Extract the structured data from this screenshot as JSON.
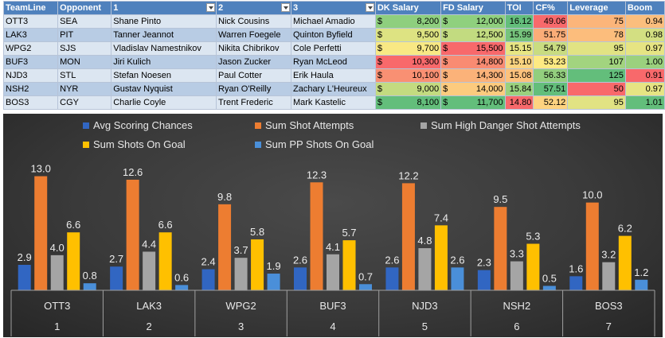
{
  "table": {
    "headers": [
      "TeamLine",
      "Opponent",
      "1",
      "2",
      "3",
      "DK Salary",
      "FD Salary",
      "TOI",
      "CF%",
      "Leverage",
      "Boom"
    ],
    "rows": [
      {
        "teamline": "OTT3",
        "opponent": "SEA",
        "p1": "Shane Pinto",
        "p2": "Nick Cousins",
        "p3": "Michael Amadio",
        "dk": "8,200",
        "fd": "12,000",
        "toi": "16.12",
        "cf": "49.06",
        "leverage": "75",
        "boom": "0.94",
        "colors": {
          "dk": "#8ecf7e",
          "fd": "#8fd07e",
          "toi": "#63be7b",
          "cf": "#f8696b",
          "leverage": "#fcb57a",
          "boom": "#fbbe7d"
        }
      },
      {
        "teamline": "LAK3",
        "opponent": "PIT",
        "p1": "Tanner Jeannot",
        "p2": "Warren Foegele",
        "p3": "Quinton Byfield",
        "dk": "9,500",
        "fd": "12,500",
        "toi": "15.99",
        "cf": "51.75",
        "leverage": "78",
        "boom": "0.98",
        "colors": {
          "dk": "#dde382",
          "fd": "#c2db80",
          "toi": "#76c47c",
          "cf": "#fbad78",
          "leverage": "#fcbd7c",
          "boom": "#d3df82"
        }
      },
      {
        "teamline": "WPG2",
        "opponent": "SJS",
        "p1": "Vladislav Namestnikov",
        "p2": "Nikita Chibrikov",
        "p3": "Cole Perfetti",
        "dk": "9,700",
        "fd": "15,500",
        "toi": "15.15",
        "cf": "54.79",
        "leverage": "95",
        "boom": "0.97",
        "colors": {
          "dk": "#f8e884",
          "fd": "#f8696b",
          "toi": "#e7e583",
          "cf": "#c9dc81",
          "leverage": "#e1e383",
          "boom": "#e6e483"
        }
      },
      {
        "teamline": "BUF3",
        "opponent": "MON",
        "p1": "Jiri Kulich",
        "p2": "Jason Zucker",
        "p3": "Ryan McLeod",
        "dk": "10,300",
        "fd": "14,800",
        "toi": "15.10",
        "cf": "53.23",
        "leverage": "107",
        "boom": "1.00",
        "colors": {
          "dk": "#f8696b",
          "fd": "#f98b72",
          "toi": "#fbd480",
          "cf": "#feea83",
          "leverage": "#a2d47f",
          "boom": "#9bd17e"
        }
      },
      {
        "teamline": "NJD3",
        "opponent": "STL",
        "p1": "Stefan Noesen",
        "p2": "Paul Cotter",
        "p3": "Erik Haula",
        "dk": "10,100",
        "fd": "14,300",
        "toi": "15.08",
        "cf": "56.33",
        "leverage": "125",
        "boom": "0.91",
        "colors": {
          "dk": "#f99073",
          "fd": "#fbb279",
          "toi": "#fcc27c",
          "cf": "#93cf7e",
          "leverage": "#63be7b",
          "boom": "#f8696b"
        }
      },
      {
        "teamline": "NSH2",
        "opponent": "NYR",
        "p1": "Gustav Nyquist",
        "p2": "Ryan O'Reilly",
        "p3": "Zachary L'Heureux",
        "dk": "9,000",
        "fd": "14,000",
        "toi": "15.84",
        "cf": "57.51",
        "leverage": "50",
        "boom": "0.97",
        "colors": {
          "dk": "#c3db80",
          "fd": "#fccb7e",
          "toi": "#9ad17e",
          "cf": "#63be7b",
          "leverage": "#f8696b",
          "boom": "#e6e483"
        }
      },
      {
        "teamline": "BOS3",
        "opponent": "CGY",
        "p1": "Charlie Coyle",
        "p2": "Trent Frederic",
        "p3": "Mark Kastelic",
        "dk": "8,100",
        "fd": "11,700",
        "toi": "14.80",
        "cf": "52.12",
        "leverage": "95",
        "boom": "1.01",
        "colors": {
          "dk": "#63be7b",
          "fd": "#63be7b",
          "toi": "#f8696b",
          "cf": "#fed380",
          "leverage": "#e1e383",
          "boom": "#63be7b"
        }
      }
    ]
  },
  "chart_data": {
    "type": "bar",
    "title": "",
    "xlabel": "",
    "ylabel": "",
    "categories": [
      "OTT3",
      "LAK3",
      "WPG2",
      "BUF3",
      "NJD3",
      "NSH2",
      "BOS3"
    ],
    "category_index": [
      "1",
      "2",
      "3",
      "4",
      "5",
      "6",
      "7"
    ],
    "ylim": [
      0,
      14.5
    ],
    "grid": false,
    "legend_position": "top",
    "series": [
      {
        "name": "Avg Scoring Chances",
        "values": [
          2.9,
          2.7,
          2.4,
          2.6,
          2.6,
          2.3,
          1.6
        ],
        "color": "#3166c2"
      },
      {
        "name": "Sum Shot Attempts",
        "values": [
          13.0,
          12.6,
          9.8,
          12.3,
          12.2,
          9.5,
          10.0
        ],
        "color": "#ed7d31"
      },
      {
        "name": "Sum High Danger Shot Attempts",
        "values": [
          4.0,
          4.4,
          3.7,
          4.1,
          4.8,
          3.3,
          3.2
        ],
        "color": "#a5a5a5"
      },
      {
        "name": "Sum Shots On Goal",
        "values": [
          6.6,
          6.6,
          5.8,
          5.7,
          7.4,
          5.3,
          6.2
        ],
        "color": "#ffc000"
      },
      {
        "name": "Sum PP Shots On Goal",
        "values": [
          0.8,
          0.6,
          1.9,
          0.7,
          2.6,
          0.5,
          1.2
        ],
        "color": "#4a8fd9"
      }
    ]
  }
}
